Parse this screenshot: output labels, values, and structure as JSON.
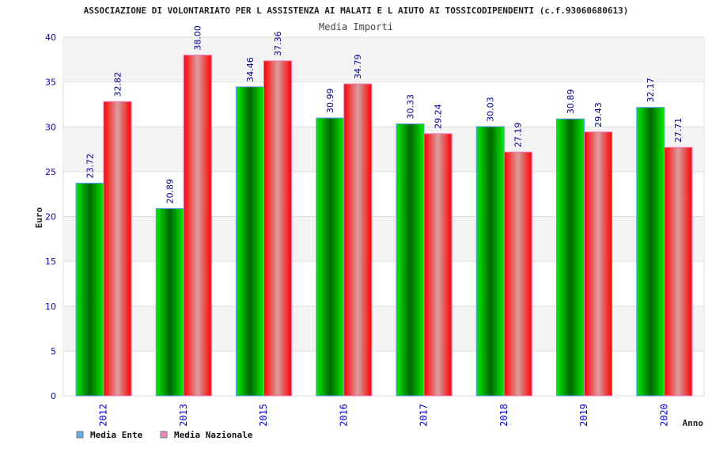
{
  "chart_data": {
    "type": "bar",
    "title": "ASSOCIAZIONE DI VOLONTARIATO PER L ASSISTENZA AI MALATI E L AIUTO AI TOSSICODIPENDENTI (c.f.93060680613)",
    "subtitle": "Media Importi",
    "xlabel": "Anno",
    "ylabel": "Euro",
    "ylim": [
      0,
      40
    ],
    "yticks": [
      0,
      5,
      10,
      15,
      20,
      25,
      30,
      35,
      40
    ],
    "grid": true,
    "legend_position": "bottom-left",
    "categories": [
      "2012",
      "2013",
      "2015",
      "2016",
      "2017",
      "2018",
      "2019",
      "2020"
    ],
    "series": [
      {
        "name": "Media Ente",
        "color": "#00cc00",
        "legend_color": "#66aaee",
        "values": [
          23.72,
          20.89,
          34.46,
          30.99,
          30.33,
          30.03,
          30.89,
          32.17
        ],
        "labels": [
          "23.72",
          "20.89",
          "34.46",
          "30.99",
          "30.33",
          "30.03",
          "30.89",
          "32.17"
        ]
      },
      {
        "name": "Media Nazionale",
        "color": "#ff0000",
        "legend_color": "#ee88bb",
        "values": [
          32.82,
          38.0,
          37.36,
          34.79,
          29.24,
          27.19,
          29.43,
          27.71
        ],
        "labels": [
          "32.82",
          "38.00",
          "37.36",
          "34.79",
          "29.24",
          "27.19",
          "29.43",
          "27.71"
        ]
      }
    ]
  }
}
